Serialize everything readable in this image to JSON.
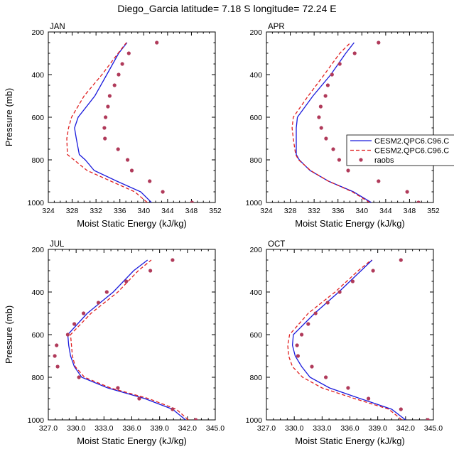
{
  "title": "Diego_Garcia  latitude= 7.18 S longitude= 72.24 E",
  "colors": {
    "model1": "#1a1adc",
    "model2": "#e02020",
    "obs": "#b03a5a"
  },
  "legend": {
    "entries": [
      {
        "label": "CESM2.QPC6.C96.C",
        "style": "solid-blue"
      },
      {
        "label": "CESM2.QPC6.C96.C",
        "style": "dashed-red"
      },
      {
        "label": "raobs",
        "style": "marker"
      }
    ]
  },
  "chart_data": [
    {
      "type": "line",
      "title": "JAN",
      "xlabel": "Moist Static Energy (kJ/kg)",
      "ylabel": "Pressure (mb)",
      "xlim": [
        324,
        352
      ],
      "ylim": [
        200,
        1000
      ],
      "xticks": [
        324,
        328,
        332,
        336,
        340,
        344,
        348,
        352
      ],
      "xtick_labels": [
        "324",
        "328",
        "332",
        "336",
        "340",
        "344",
        "348",
        "352"
      ],
      "yticks": [
        200,
        400,
        600,
        800,
        1000
      ],
      "ytick_labels": [
        "200",
        "400",
        "600",
        "800",
        "1000"
      ],
      "series": [
        {
          "name": "CESM2.QPC6.C96.C (solid)",
          "pressure": [
            1000,
            950,
            900,
            850,
            800,
            775,
            700,
            650,
            600,
            500,
            400,
            300,
            250
          ],
          "mse": [
            341.3,
            339.5,
            335.5,
            331.7,
            330.2,
            329.2,
            328.7,
            328.4,
            329.0,
            331.8,
            333.8,
            335.8,
            337.2
          ]
        },
        {
          "name": "CESM2.QPC6.C96.C (dashed)",
          "pressure": [
            1000,
            950,
            900,
            850,
            800,
            775,
            700,
            650,
            600,
            500,
            400,
            300,
            250
          ],
          "mse": [
            340.6,
            338.5,
            334.5,
            330.5,
            328.3,
            327.2,
            327.1,
            327.4,
            327.9,
            330.0,
            333.0,
            335.7,
            337.1
          ]
        },
        {
          "name": "raobs",
          "pressure": [
            1000,
            950,
            900,
            850,
            800,
            750,
            700,
            650,
            600,
            550,
            500,
            450,
            400,
            350,
            300,
            250
          ],
          "mse": [
            348.1,
            343.2,
            341.0,
            338.0,
            337.3,
            335.7,
            333.5,
            333.4,
            333.6,
            334.0,
            334.3,
            335.1,
            335.8,
            336.4,
            337.5,
            342.2
          ]
        }
      ]
    },
    {
      "type": "line",
      "title": "APR",
      "xlabel": "Moist Static Energy (kJ/kg)",
      "ylabel": "Pressure (mb)",
      "xlim": [
        324,
        352
      ],
      "ylim": [
        200,
        1000
      ],
      "xticks": [
        324,
        328,
        332,
        336,
        340,
        344,
        348,
        352
      ],
      "xtick_labels": [
        "324",
        "328",
        "332",
        "336",
        "340",
        "344",
        "348",
        "352"
      ],
      "yticks": [
        200,
        400,
        600,
        800,
        1000
      ],
      "ytick_labels": [
        "200",
        "400",
        "600",
        "800",
        "1000"
      ],
      "series": [
        {
          "name": "CESM2.QPC6.C96.C (solid)",
          "pressure": [
            1000,
            950,
            900,
            850,
            800,
            775,
            700,
            650,
            600,
            500,
            400,
            300,
            250
          ],
          "mse": [
            341.6,
            338.6,
            334.4,
            331.3,
            329.5,
            329.0,
            329.0,
            329.0,
            329.2,
            331.8,
            334.8,
            337.3,
            338.7
          ]
        },
        {
          "name": "CESM2.QPC6.C96.C (dashed)",
          "pressure": [
            1000,
            950,
            900,
            850,
            800,
            775,
            700,
            650,
            600,
            500,
            400,
            300,
            250
          ],
          "mse": [
            341.3,
            338.4,
            334.4,
            331.4,
            329.4,
            328.9,
            328.5,
            328.3,
            328.5,
            331.0,
            333.7,
            336.3,
            338.1
          ]
        },
        {
          "name": "raobs",
          "pressure": [
            1000,
            950,
            900,
            850,
            800,
            750,
            700,
            650,
            600,
            550,
            500,
            450,
            400,
            350,
            300,
            250
          ],
          "mse": [
            349.5,
            347.6,
            342.8,
            337.7,
            336.2,
            335.2,
            334.0,
            333.2,
            332.8,
            333.1,
            333.9,
            334.3,
            335.0,
            336.3,
            338.8,
            342.8
          ]
        }
      ]
    },
    {
      "type": "line",
      "title": "JUL",
      "xlabel": "Moist Static Energy (kJ/kg)",
      "ylabel": "Pressure (mb)",
      "xlim": [
        327.0,
        345.0
      ],
      "ylim": [
        200,
        1000
      ],
      "xticks": [
        327.0,
        330.0,
        333.0,
        336.0,
        339.0,
        342.0,
        345.0
      ],
      "xtick_labels": [
        "327.0",
        "330.0",
        "333.0",
        "336.0",
        "339.0",
        "342.0",
        "345.0"
      ],
      "yticks": [
        200,
        400,
        600,
        800,
        1000
      ],
      "ytick_labels": [
        "200",
        "400",
        "600",
        "800",
        "1000"
      ],
      "series": [
        {
          "name": "CESM2.QPC6.C96.C (solid)",
          "pressure": [
            1000,
            950,
            900,
            850,
            800,
            750,
            700,
            650,
            600,
            500,
            400,
            300,
            250
          ],
          "mse": [
            341.8,
            340.4,
            337.4,
            333.4,
            330.6,
            329.8,
            329.4,
            329.2,
            329.1,
            331.2,
            334.0,
            336.2,
            337.7
          ]
        },
        {
          "name": "CESM2.QPC6.C96.C (dashed)",
          "pressure": [
            1000,
            950,
            900,
            850,
            800,
            750,
            700,
            650,
            600,
            500,
            400,
            300,
            250
          ],
          "mse": [
            342.1,
            340.8,
            337.8,
            333.7,
            330.9,
            329.9,
            329.6,
            329.5,
            329.4,
            331.6,
            334.5,
            336.7,
            338.1
          ]
        },
        {
          "name": "raobs",
          "pressure": [
            1000,
            950,
            900,
            850,
            800,
            750,
            700,
            650,
            600,
            550,
            500,
            450,
            400,
            350,
            300,
            250
          ],
          "mse": [
            342.9,
            340.4,
            336.8,
            334.5,
            330.3,
            328.0,
            327.7,
            327.9,
            329.1,
            329.8,
            330.8,
            332.4,
            333.3,
            335.4,
            338.0,
            340.4
          ]
        }
      ]
    },
    {
      "type": "line",
      "title": "OCT",
      "xlabel": "Moist Static Energy (kJ/kg)",
      "ylabel": "Pressure (mb)",
      "xlim": [
        327.0,
        345.0
      ],
      "ylim": [
        200,
        1000
      ],
      "xticks": [
        327.0,
        330.0,
        333.0,
        336.0,
        339.0,
        342.0,
        345.0
      ],
      "xtick_labels": [
        "327.0",
        "330.0",
        "333.0",
        "336.0",
        "339.0",
        "342.0",
        "345.0"
      ],
      "yticks": [
        200,
        400,
        600,
        800,
        1000
      ],
      "ytick_labels": [
        "200",
        "400",
        "600",
        "800",
        "1000"
      ],
      "series": [
        {
          "name": "CESM2.QPC6.C96.C (solid)",
          "pressure": [
            1000,
            950,
            900,
            850,
            800,
            750,
            700,
            650,
            600,
            500,
            400,
            300,
            250
          ],
          "mse": [
            342.0,
            340.5,
            337.1,
            333.8,
            331.7,
            330.8,
            330.1,
            329.8,
            329.9,
            332.2,
            334.8,
            337.2,
            338.4
          ]
        },
        {
          "name": "CESM2.QPC6.C96.C (dashed)",
          "pressure": [
            1000,
            950,
            900,
            850,
            800,
            750,
            700,
            650,
            600,
            500,
            400,
            300,
            250
          ],
          "mse": [
            341.6,
            340.2,
            336.5,
            333.0,
            330.9,
            329.8,
            329.4,
            329.3,
            329.5,
            331.5,
            334.4,
            336.9,
            338.3
          ]
        },
        {
          "name": "raobs",
          "pressure": [
            1000,
            950,
            900,
            850,
            800,
            750,
            700,
            650,
            600,
            550,
            500,
            450,
            400,
            350,
            300,
            250
          ],
          "mse": [
            344.4,
            341.5,
            338.0,
            335.8,
            333.4,
            331.9,
            330.4,
            330.3,
            330.8,
            331.5,
            332.3,
            333.6,
            334.9,
            336.3,
            338.5,
            341.5
          ]
        }
      ]
    }
  ]
}
